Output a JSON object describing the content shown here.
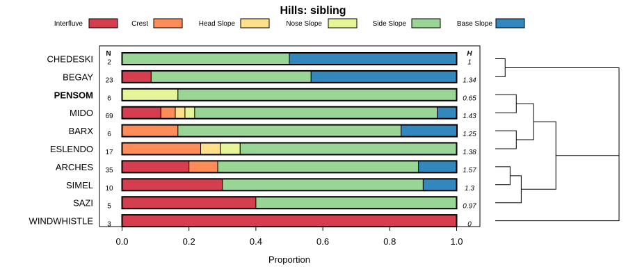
{
  "chart_data": {
    "type": "bar",
    "orientation": "horizontal",
    "stacked": true,
    "title": "Hills: sibling",
    "xlabel": "Proportion",
    "xlim": [
      0,
      1
    ],
    "x_ticks": [
      "0.0",
      "0.2",
      "0.4",
      "0.6",
      "0.8",
      "1.0"
    ],
    "n_header": "N",
    "h_header": "H",
    "legend_position": "top",
    "series": [
      {
        "name": "Interfluve",
        "color": "#d53e4f"
      },
      {
        "name": "Crest",
        "color": "#fc8d59"
      },
      {
        "name": "Head Slope",
        "color": "#fee08b"
      },
      {
        "name": "Nose Slope",
        "color": "#e6f598"
      },
      {
        "name": "Side Slope",
        "color": "#99d594"
      },
      {
        "name": "Base Slope",
        "color": "#3288bd"
      }
    ],
    "categories": [
      "CHEDESKI",
      "BEGAY",
      "PENSOM",
      "MIDO",
      "BARX",
      "ESLENDO",
      "ARCHES",
      "SIMEL",
      "SAZI",
      "WINDWHISTLE"
    ],
    "highlighted_category": "PENSOM",
    "rows": [
      {
        "name": "CHEDESKI",
        "n": "2",
        "h": "1",
        "values": [
          0,
          0,
          0,
          0,
          0.5,
          0.5
        ]
      },
      {
        "name": "BEGAY",
        "n": "23",
        "h": "1.34",
        "values": [
          0.087,
          0,
          0,
          0,
          0.478,
          0.435
        ]
      },
      {
        "name": "PENSOM",
        "n": "6",
        "h": "0.65",
        "values": [
          0,
          0,
          0,
          0.167,
          0.833,
          0
        ]
      },
      {
        "name": "MIDO",
        "n": "69",
        "h": "1.43",
        "values": [
          0.116,
          0.043,
          0.029,
          0.029,
          0.725,
          0.058
        ]
      },
      {
        "name": "BARX",
        "n": "6",
        "h": "1.25",
        "values": [
          0,
          0.167,
          0,
          0,
          0.667,
          0.167
        ]
      },
      {
        "name": "ESLENDO",
        "n": "17",
        "h": "1.38",
        "values": [
          0,
          0.235,
          0.059,
          0.059,
          0.647,
          0
        ]
      },
      {
        "name": "ARCHES",
        "n": "35",
        "h": "1.57",
        "values": [
          0.2,
          0.086,
          0,
          0,
          0.6,
          0.114
        ]
      },
      {
        "name": "SIMEL",
        "n": "10",
        "h": "1.3",
        "values": [
          0.3,
          0,
          0,
          0,
          0.6,
          0.1
        ]
      },
      {
        "name": "SAZI",
        "n": "5",
        "h": "0.97",
        "values": [
          0.4,
          0,
          0,
          0,
          0.6,
          0
        ]
      },
      {
        "name": "WINDWHISTLE",
        "n": "3",
        "h": "0",
        "values": [
          1,
          0,
          0,
          0,
          0,
          0
        ]
      }
    ],
    "dendrogram": {
      "leaf_order": [
        "CHEDESKI",
        "BEGAY",
        "PENSOM",
        "MIDO",
        "BARX",
        "ESLENDO",
        "ARCHES",
        "SIMEL",
        "SAZI",
        "WINDWHISTLE"
      ],
      "merges": [
        {
          "a": "L:CHEDESKI",
          "b": "L:BEGAY",
          "height": 0.08
        },
        {
          "a": "L:PENSOM",
          "b": "L:MIDO",
          "height": 0.17
        },
        {
          "a": "L:BARX",
          "b": "L:ESLENDO",
          "height": 0.17
        },
        {
          "a": "N:1",
          "b": "N:2",
          "height": 0.31
        },
        {
          "a": "L:ARCHES",
          "b": "L:SIMEL",
          "height": 0.12
        },
        {
          "a": "N:4",
          "b": "L:SAZI",
          "height": 0.21
        },
        {
          "a": "N:3",
          "b": "N:5",
          "height": 0.49
        },
        {
          "a": "N:0",
          "b": "N:6",
          "height": 1.0
        },
        {
          "a": "N:7",
          "b": "L:WINDWHISTLE",
          "height": 1.0
        }
      ]
    }
  }
}
